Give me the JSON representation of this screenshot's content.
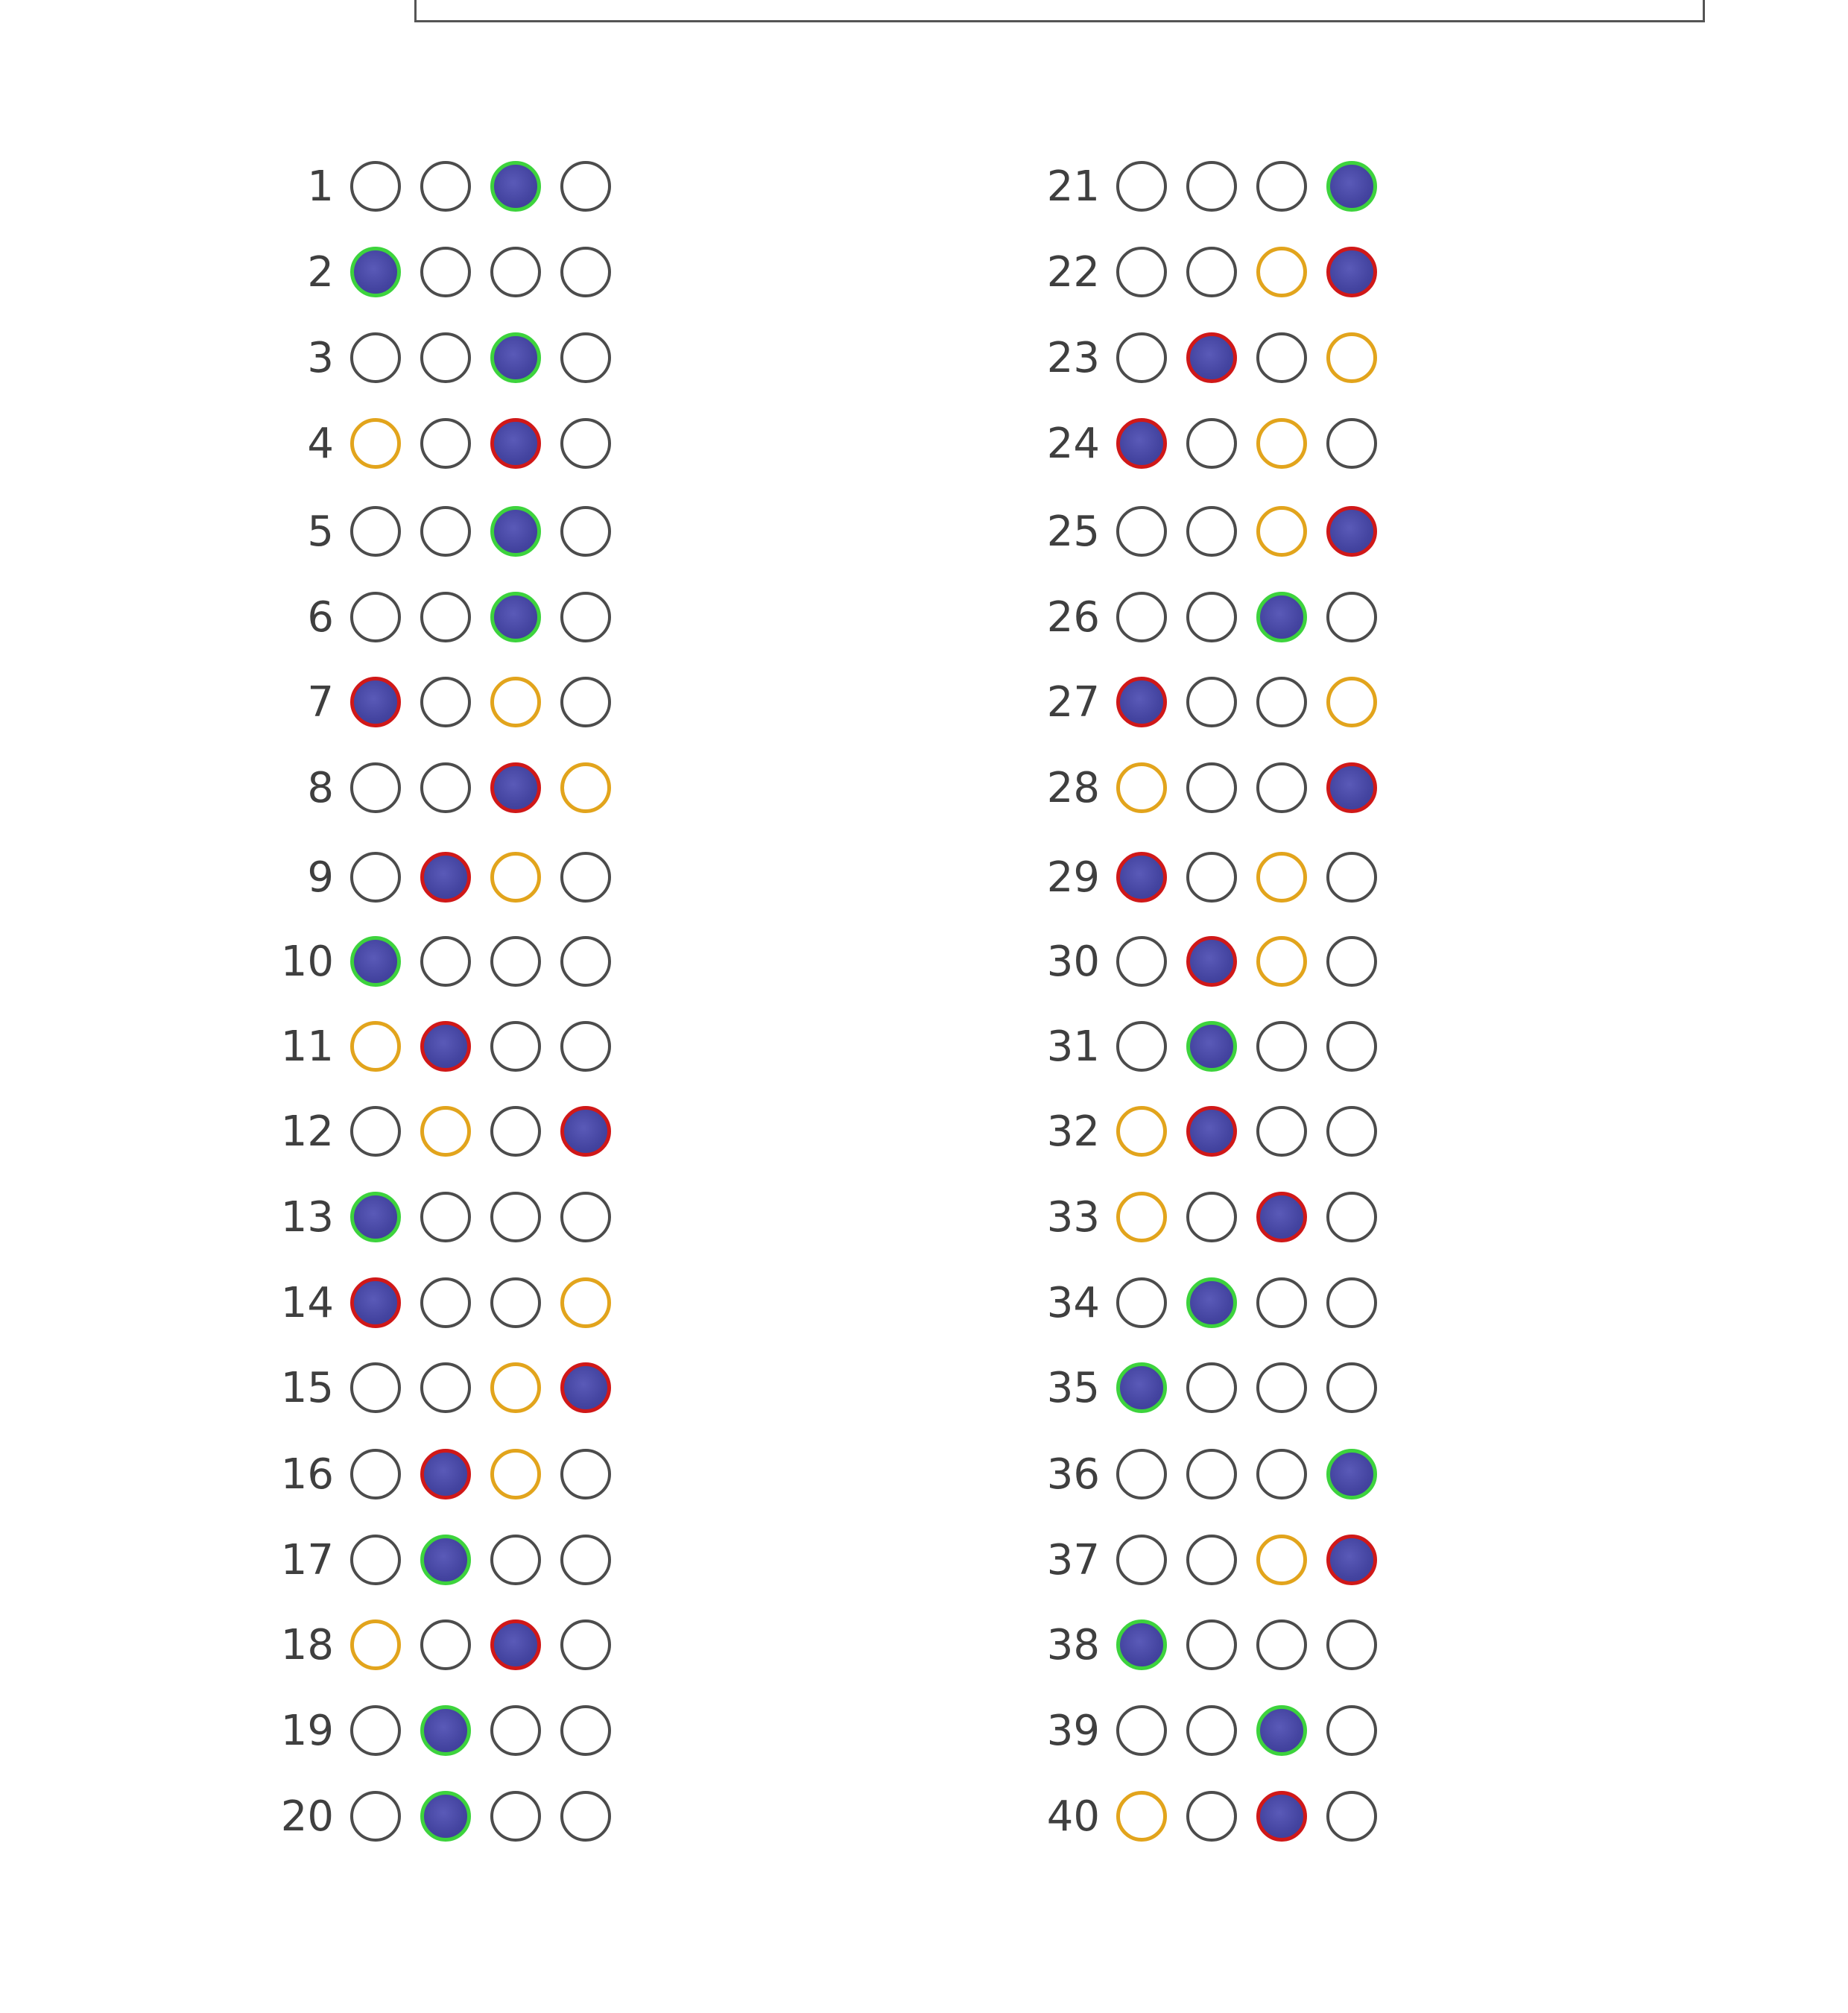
{
  "colors": {
    "fill": "#4444a0",
    "correct_ring": "#3dd33d",
    "wrong_ring": "#d01818",
    "answer_ring": "#e2a41c",
    "empty_ring": "#4c4c4c"
  },
  "questions": [
    {
      "num": "1",
      "bubbles": [
        "empty",
        "empty",
        "correct",
        "empty"
      ]
    },
    {
      "num": "2",
      "bubbles": [
        "correct",
        "empty",
        "empty",
        "empty"
      ]
    },
    {
      "num": "3",
      "bubbles": [
        "empty",
        "empty",
        "correct",
        "empty"
      ]
    },
    {
      "num": "4",
      "bubbles": [
        "answer",
        "empty",
        "wrong",
        "empty"
      ]
    },
    {
      "num": "5",
      "bubbles": [
        "empty",
        "empty",
        "correct",
        "empty"
      ]
    },
    {
      "num": "6",
      "bubbles": [
        "empty",
        "empty",
        "correct",
        "empty"
      ]
    },
    {
      "num": "7",
      "bubbles": [
        "wrong",
        "empty",
        "answer",
        "empty"
      ]
    },
    {
      "num": "8",
      "bubbles": [
        "empty",
        "empty",
        "wrong",
        "answer"
      ]
    },
    {
      "num": "9",
      "bubbles": [
        "empty",
        "wrong",
        "answer",
        "empty"
      ]
    },
    {
      "num": "10",
      "bubbles": [
        "correct",
        "empty",
        "empty",
        "empty"
      ]
    },
    {
      "num": "11",
      "bubbles": [
        "answer",
        "wrong",
        "empty",
        "empty"
      ]
    },
    {
      "num": "12",
      "bubbles": [
        "empty",
        "answer",
        "empty",
        "wrong"
      ]
    },
    {
      "num": "13",
      "bubbles": [
        "correct",
        "empty",
        "empty",
        "empty"
      ]
    },
    {
      "num": "14",
      "bubbles": [
        "wrong",
        "empty",
        "empty",
        "answer"
      ]
    },
    {
      "num": "15",
      "bubbles": [
        "empty",
        "empty",
        "answer",
        "wrong"
      ]
    },
    {
      "num": "16",
      "bubbles": [
        "empty",
        "wrong",
        "answer",
        "empty"
      ]
    },
    {
      "num": "17",
      "bubbles": [
        "empty",
        "correct",
        "empty",
        "empty"
      ]
    },
    {
      "num": "18",
      "bubbles": [
        "answer",
        "empty",
        "wrong",
        "empty"
      ]
    },
    {
      "num": "19",
      "bubbles": [
        "empty",
        "correct",
        "empty",
        "empty"
      ]
    },
    {
      "num": "20",
      "bubbles": [
        "empty",
        "correct",
        "empty",
        "empty"
      ]
    },
    {
      "num": "21",
      "bubbles": [
        "empty",
        "empty",
        "empty",
        "correct"
      ]
    },
    {
      "num": "22",
      "bubbles": [
        "empty",
        "empty",
        "answer",
        "wrong"
      ]
    },
    {
      "num": "23",
      "bubbles": [
        "empty",
        "wrong",
        "empty",
        "answer"
      ]
    },
    {
      "num": "24",
      "bubbles": [
        "wrong",
        "empty",
        "answer",
        "empty"
      ]
    },
    {
      "num": "25",
      "bubbles": [
        "empty",
        "empty",
        "answer",
        "wrong"
      ]
    },
    {
      "num": "26",
      "bubbles": [
        "empty",
        "empty",
        "correct",
        "empty"
      ]
    },
    {
      "num": "27",
      "bubbles": [
        "wrong",
        "empty",
        "empty",
        "answer"
      ]
    },
    {
      "num": "28",
      "bubbles": [
        "answer",
        "empty",
        "empty",
        "wrong"
      ]
    },
    {
      "num": "29",
      "bubbles": [
        "wrong",
        "empty",
        "answer",
        "empty"
      ]
    },
    {
      "num": "30",
      "bubbles": [
        "empty",
        "wrong",
        "answer",
        "empty"
      ]
    },
    {
      "num": "31",
      "bubbles": [
        "empty",
        "correct",
        "empty",
        "empty"
      ]
    },
    {
      "num": "32",
      "bubbles": [
        "answer",
        "wrong",
        "empty",
        "empty"
      ]
    },
    {
      "num": "33",
      "bubbles": [
        "answer",
        "empty",
        "wrong",
        "empty"
      ]
    },
    {
      "num": "34",
      "bubbles": [
        "empty",
        "correct",
        "empty",
        "empty"
      ]
    },
    {
      "num": "35",
      "bubbles": [
        "correct",
        "empty",
        "empty",
        "empty"
      ]
    },
    {
      "num": "36",
      "bubbles": [
        "empty",
        "empty",
        "empty",
        "correct"
      ]
    },
    {
      "num": "37",
      "bubbles": [
        "empty",
        "empty",
        "answer",
        "wrong"
      ]
    },
    {
      "num": "38",
      "bubbles": [
        "correct",
        "empty",
        "empty",
        "empty"
      ]
    },
    {
      "num": "39",
      "bubbles": [
        "empty",
        "empty",
        "correct",
        "empty"
      ]
    },
    {
      "num": "40",
      "bubbles": [
        "answer",
        "empty",
        "wrong",
        "empty"
      ]
    }
  ]
}
